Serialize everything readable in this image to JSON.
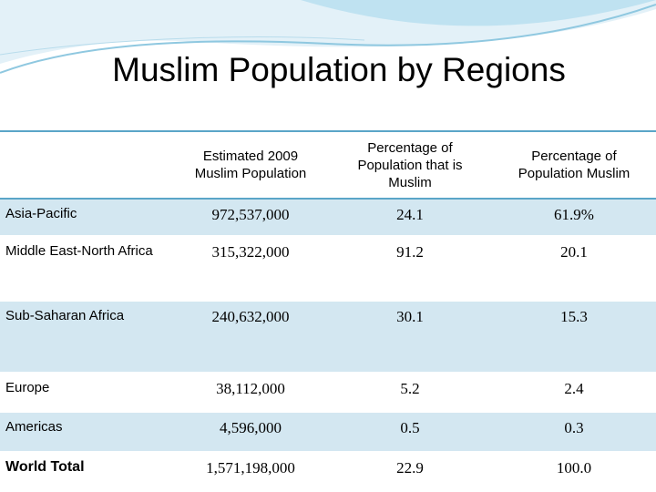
{
  "title": "Muslim Population by Regions",
  "table": {
    "header": [
      "Estimated 2009 Muslim Population",
      "Percentage of Population that is Muslim",
      "Percentage of Population Muslim"
    ],
    "rows": [
      [
        "Asia-Pacific",
        "972,537,000",
        "24.1",
        "61.9%"
      ],
      [
        "Middle East-North Africa",
        "315,322,000",
        "91.2",
        "20.1"
      ],
      [
        "Sub-Saharan Africa",
        "240,632,000",
        "30.1",
        "15.3"
      ],
      [
        "Europe",
        "38,112,000",
        "5.2",
        "2.4"
      ],
      [
        "Americas",
        "4,596,000",
        "0.5",
        "0.3"
      ],
      [
        "World Total",
        "1,571,198,000",
        "22.9",
        "100.0"
      ]
    ]
  }
}
